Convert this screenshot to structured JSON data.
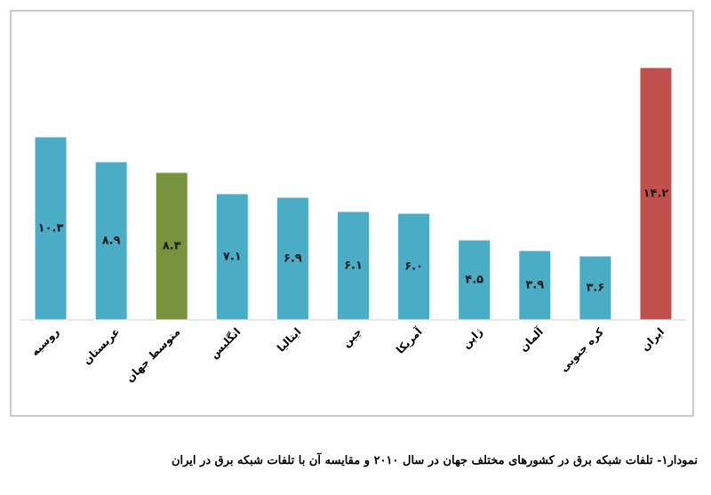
{
  "chart_data": {
    "type": "bar",
    "caption": "نمودار۱- تلفات شبکه برق در کشورهای مختلف جهان در سال ۲۰۱۰ و مقایسه آن با تلفات شبکه برق در ایران",
    "categories": [
      "روسیه",
      "عربستان",
      "متوسط جهان",
      "انگلیس",
      "ایتالیا",
      "چین",
      "آمریکا",
      "ژاپن",
      "آلمان",
      "کره جنوبی",
      "ایران"
    ],
    "values": [
      10.3,
      8.9,
      8.3,
      7.1,
      6.9,
      6.1,
      6.0,
      4.5,
      3.9,
      3.6,
      14.2
    ],
    "value_labels": [
      "۱۰.۳",
      "۸.۹",
      "۸.۳",
      "۷.۱",
      "۶.۹",
      "۶.۱",
      "۶.۰",
      "۴.۵",
      "۳.۹",
      "۳.۶",
      "۱۴.۲"
    ],
    "colors": [
      "#4bacc6",
      "#4bacc6",
      "#77933c",
      "#4bacc6",
      "#4bacc6",
      "#4bacc6",
      "#4bacc6",
      "#4bacc6",
      "#4bacc6",
      "#4bacc6",
      "#c0504d"
    ],
    "ylim": [
      0,
      15
    ]
  }
}
